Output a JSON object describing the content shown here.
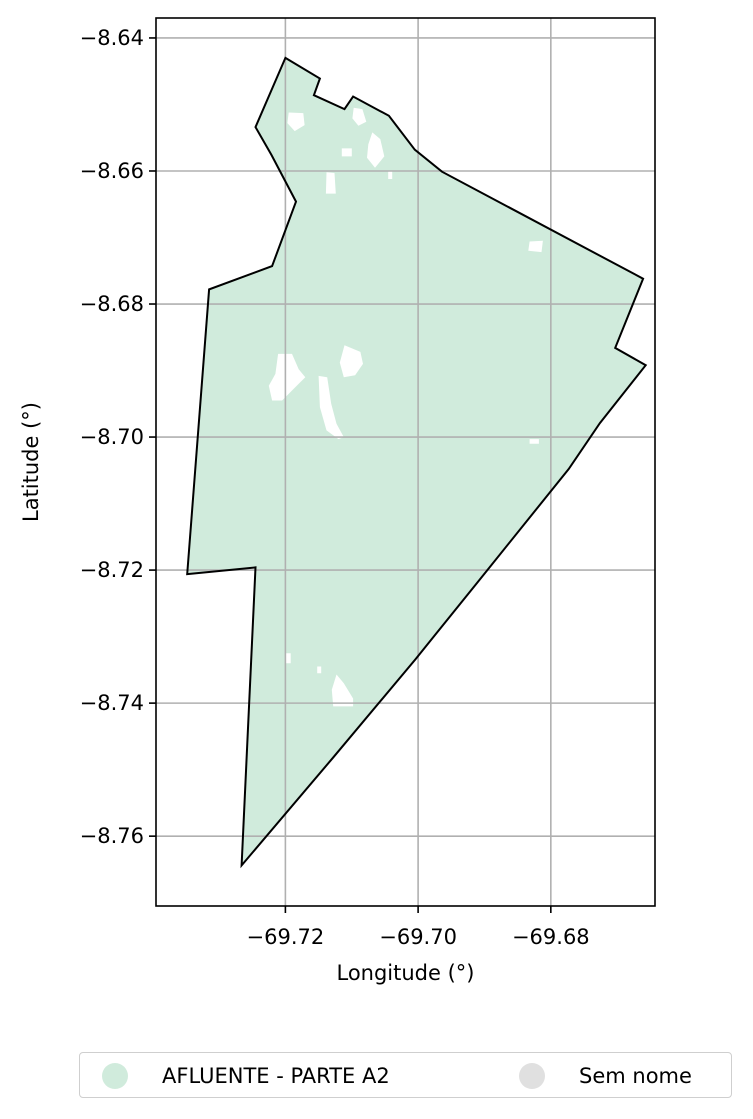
{
  "chart_data": {
    "type": "map",
    "xlabel": "Longitude (°)",
    "ylabel": "Latitude (°)",
    "xlim": [
      -69.7395,
      -69.6643
    ],
    "ylim": [
      -8.7705,
      -8.637
    ],
    "xticks": [
      -69.72,
      -69.7,
      -69.68
    ],
    "xtick_labels": [
      "−69.72",
      "−69.70",
      "−69.68"
    ],
    "yticks": [
      -8.64,
      -8.66,
      -8.68,
      -8.7,
      -8.72,
      -8.74,
      -8.76
    ],
    "ytick_labels": [
      "−8.64",
      "−8.66",
      "−8.68",
      "−8.70",
      "−8.72",
      "−8.74",
      "−8.76"
    ],
    "grid": true,
    "fill_color": "#d0ebdc",
    "outline_color": "#000000",
    "boundary": [
      [
        -69.72,
        -8.643
      ],
      [
        -69.7148,
        -8.6461
      ],
      [
        -69.7157,
        -8.6486
      ],
      [
        -69.7111,
        -8.6507
      ],
      [
        -69.7098,
        -8.6488
      ],
      [
        -69.7044,
        -8.6517
      ],
      [
        -69.7005,
        -8.6568
      ],
      [
        -69.6964,
        -8.6601
      ],
      [
        -69.6661,
        -8.6762
      ],
      [
        -69.6703,
        -8.6866
      ],
      [
        -69.6657,
        -8.6892
      ],
      [
        -69.6726,
        -8.6979
      ],
      [
        -69.6773,
        -8.7048
      ],
      [
        -69.6911,
        -8.7219
      ],
      [
        -69.7004,
        -8.7334
      ],
      [
        -69.7129,
        -8.7483
      ],
      [
        -69.7266,
        -8.7644
      ],
      [
        -69.7245,
        -8.7196
      ],
      [
        -69.7348,
        -8.7206
      ],
      [
        -69.7315,
        -8.6778
      ],
      [
        -69.722,
        -8.6743
      ],
      [
        -69.7184,
        -8.6646
      ],
      [
        -69.7221,
        -8.6576
      ],
      [
        -69.7245,
        -8.6534
      ],
      [
        -69.72,
        -8.643
      ]
    ],
    "holes": [
      [
        [
          -69.7195,
          -8.6512
        ],
        [
          -69.7173,
          -8.6513
        ],
        [
          -69.7171,
          -8.6531
        ],
        [
          -69.7186,
          -8.654
        ],
        [
          -69.7197,
          -8.6528
        ]
      ],
      [
        [
          -69.7097,
          -8.6505
        ],
        [
          -69.7084,
          -8.6507
        ],
        [
          -69.7078,
          -8.6526
        ],
        [
          -69.709,
          -8.6532
        ],
        [
          -69.7099,
          -8.6521
        ]
      ],
      [
        [
          -69.7069,
          -8.6542
        ],
        [
          -69.7057,
          -8.6552
        ],
        [
          -69.7051,
          -8.6578
        ],
        [
          -69.7065,
          -8.6595
        ],
        [
          -69.7077,
          -8.658
        ],
        [
          -69.7075,
          -8.656
        ]
      ],
      [
        [
          -69.7115,
          -8.6566
        ],
        [
          -69.71,
          -8.6566
        ],
        [
          -69.71,
          -8.6578
        ],
        [
          -69.7115,
          -8.6578
        ]
      ],
      [
        [
          -69.7138,
          -8.6602
        ],
        [
          -69.7126,
          -8.6603
        ],
        [
          -69.7124,
          -8.6634
        ],
        [
          -69.7139,
          -8.6634
        ]
      ],
      [
        [
          -69.7045,
          -8.66
        ],
        [
          -69.7039,
          -8.66
        ],
        [
          -69.7039,
          -8.6612
        ],
        [
          -69.7045,
          -8.6612
        ]
      ],
      [
        [
          -69.6832,
          -8.6706
        ],
        [
          -69.6812,
          -8.6705
        ],
        [
          -69.6814,
          -8.6722
        ],
        [
          -69.6834,
          -8.672
        ]
      ],
      [
        [
          -69.7211,
          -8.6875
        ],
        [
          -69.719,
          -8.6875
        ],
        [
          -69.718,
          -8.6898
        ],
        [
          -69.717,
          -8.691
        ],
        [
          -69.719,
          -8.693
        ],
        [
          -69.7205,
          -8.6945
        ],
        [
          -69.722,
          -8.6945
        ],
        [
          -69.7225,
          -8.6923
        ],
        [
          -69.7215,
          -8.6905
        ]
      ],
      [
        [
          -69.7111,
          -8.6862
        ],
        [
          -69.7087,
          -8.6872
        ],
        [
          -69.7083,
          -8.689
        ],
        [
          -69.7095,
          -8.6907
        ],
        [
          -69.7112,
          -8.691
        ],
        [
          -69.7118,
          -8.6888
        ]
      ],
      [
        [
          -69.715,
          -8.6908
        ],
        [
          -69.7137,
          -8.691
        ],
        [
          -69.7131,
          -8.695
        ],
        [
          -69.7123,
          -8.698
        ],
        [
          -69.7112,
          -8.7
        ],
        [
          -69.712,
          -8.7003
        ],
        [
          -69.7138,
          -8.699
        ],
        [
          -69.7148,
          -8.6955
        ]
      ],
      [
        [
          -69.6832,
          -8.7003
        ],
        [
          -69.6818,
          -8.7003
        ],
        [
          -69.6818,
          -8.701
        ],
        [
          -69.6832,
          -8.701
        ]
      ],
      [
        [
          -69.72,
          -8.7325
        ],
        [
          -69.7192,
          -8.7325
        ],
        [
          -69.7192,
          -8.734
        ],
        [
          -69.72,
          -8.734
        ]
      ],
      [
        [
          -69.7152,
          -8.7345
        ],
        [
          -69.7146,
          -8.7345
        ],
        [
          -69.7146,
          -8.7355
        ],
        [
          -69.7152,
          -8.7355
        ]
      ],
      [
        [
          -69.7123,
          -8.7357
        ],
        [
          -69.7112,
          -8.737
        ],
        [
          -69.7098,
          -8.7393
        ],
        [
          -69.7098,
          -8.7405
        ],
        [
          -69.7128,
          -8.7405
        ],
        [
          -69.713,
          -8.738
        ]
      ]
    ]
  },
  "legend": {
    "items": [
      {
        "label": "AFLUENTE - PARTE A2",
        "color": "#d0ebdc"
      },
      {
        "label": "Sem nome",
        "color": "#e0e0e0"
      }
    ]
  }
}
